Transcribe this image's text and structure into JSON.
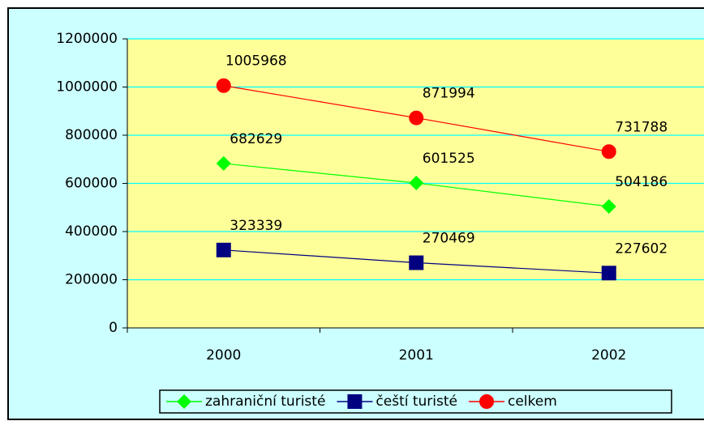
{
  "chart_data": {
    "type": "line",
    "categories": [
      "2000",
      "2001",
      "2002"
    ],
    "series": [
      {
        "name": "zahraniční turisté",
        "color": "#00ff00",
        "marker": "diamond",
        "values": [
          682629,
          601525,
          504186
        ]
      },
      {
        "name": "čeští turisté",
        "color": "#000080",
        "marker": "square",
        "values": [
          323339,
          270469,
          227602
        ]
      },
      {
        "name": "celkem",
        "color": "#ff0000",
        "marker": "circle",
        "values": [
          1005968,
          871994,
          731788
        ]
      }
    ],
    "ylim": [
      0,
      1200000
    ],
    "yticks": [
      0,
      200000,
      400000,
      600000,
      800000,
      1000000,
      1200000
    ],
    "grid": true,
    "legend": "bottom"
  }
}
